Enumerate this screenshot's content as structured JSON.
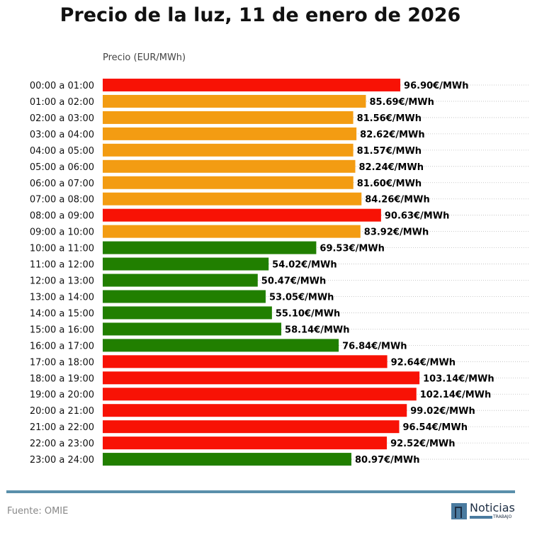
{
  "chart_data": {
    "type": "bar",
    "orientation": "horizontal",
    "title": "Precio de la luz, 11 de enero de 2026",
    "xlabel": "Precio (EUR/MWh)",
    "ylabel": "",
    "xlim": [
      0,
      138
    ],
    "grid": "dotted horizontal",
    "value_suffix": "€/MWh",
    "colors": {
      "high": "#f81205",
      "mid": "#f39c12",
      "low": "#217f00"
    },
    "categories": [
      "00:00 a 01:00",
      "01:00 a 02:00",
      "02:00 a 03:00",
      "03:00 a 04:00",
      "04:00 a 05:00",
      "05:00 a 06:00",
      "06:00 a 07:00",
      "07:00 a 08:00",
      "08:00 a 09:00",
      "09:00 a 10:00",
      "10:00 a 11:00",
      "11:00 a 12:00",
      "12:00 a 13:00",
      "13:00 a 14:00",
      "14:00 a 15:00",
      "15:00 a 16:00",
      "16:00 a 17:00",
      "17:00 a 18:00",
      "18:00 a 19:00",
      "19:00 a 20:00",
      "20:00 a 21:00",
      "21:00 a 22:00",
      "22:00 a 23:00",
      "23:00 a 24:00"
    ],
    "values": [
      96.9,
      85.69,
      81.56,
      82.62,
      81.57,
      82.24,
      81.6,
      84.26,
      90.63,
      83.92,
      69.53,
      54.02,
      50.47,
      53.05,
      55.1,
      58.14,
      76.84,
      92.64,
      103.14,
      102.14,
      99.02,
      96.54,
      92.52,
      80.97
    ],
    "levels": [
      "high",
      "mid",
      "mid",
      "mid",
      "mid",
      "mid",
      "mid",
      "mid",
      "high",
      "mid",
      "low",
      "low",
      "low",
      "low",
      "low",
      "low",
      "low",
      "high",
      "high",
      "high",
      "high",
      "high",
      "high",
      "low"
    ]
  },
  "footer": {
    "source": "Fuente: OMIE",
    "logo_text": "Noticias",
    "logo_sub": "TRABAJO"
  }
}
